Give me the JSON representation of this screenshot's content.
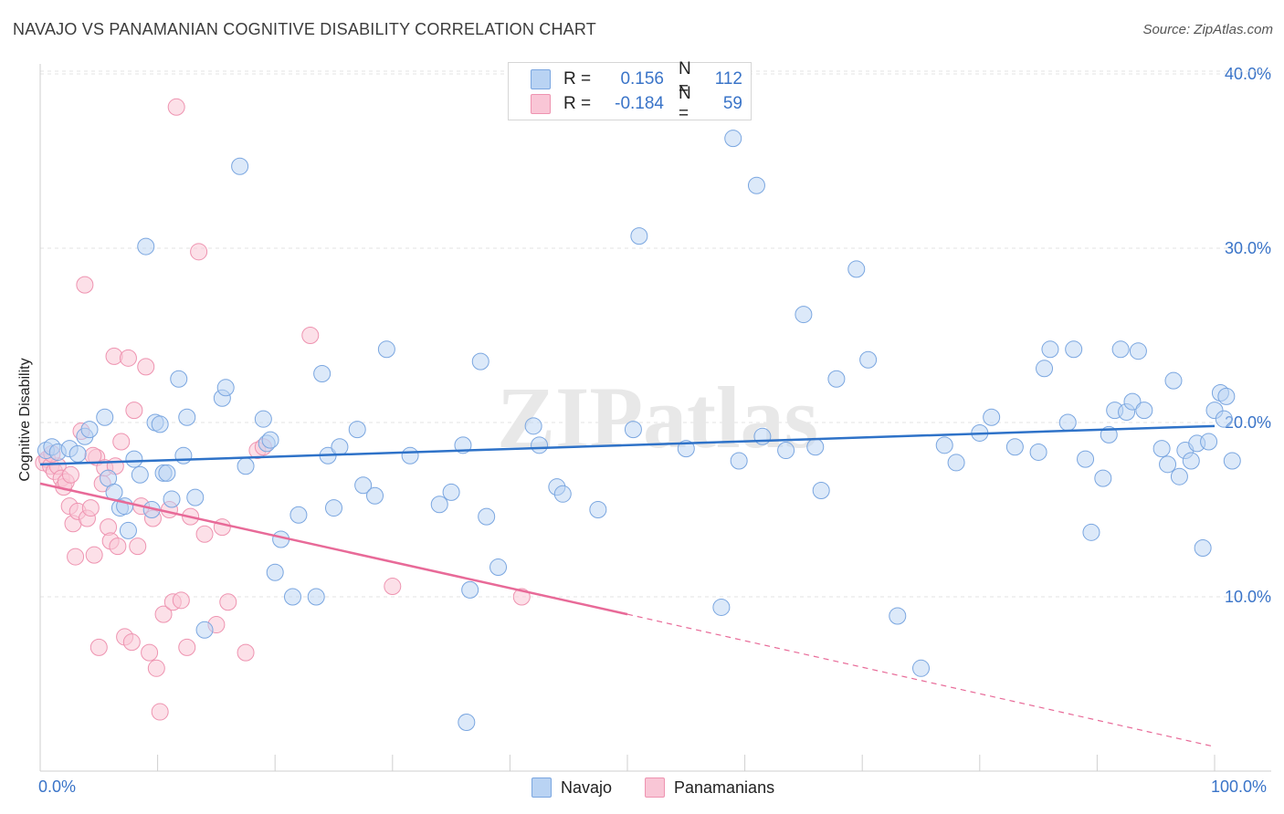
{
  "title": "NAVAJO VS PANAMANIAN COGNITIVE DISABILITY CORRELATION CHART",
  "source": "Source: ZipAtlas.com",
  "watermark": "ZIPatlas",
  "legend": {
    "row1": {
      "r_label": "R =",
      "r_value": "0.156",
      "n_label": "N =",
      "n_value": "112"
    },
    "row2": {
      "r_label": "R =",
      "r_value": "-0.184",
      "n_label": "N =",
      "n_value": "59"
    }
  },
  "bottom_legend": {
    "series1": "Navajo",
    "series2": "Panamanians"
  },
  "colors": {
    "navajo_fill": "#b9d3f3",
    "navajo_stroke": "#7aa6e0",
    "navajo_line": "#2e72c8",
    "pan_fill": "#f9c6d6",
    "pan_stroke": "#ee93b0",
    "pan_line": "#e86a98",
    "axis_text": "#3a74c8",
    "grid": "#e3e3e3"
  },
  "chart_data": {
    "type": "scatter",
    "title": "NAVAJO VS PANAMANIAN COGNITIVE DISABILITY CORRELATION CHART",
    "xlabel": "",
    "ylabel": "Cognitive Disability",
    "xlim": [
      0,
      100
    ],
    "ylim": [
      0,
      42
    ],
    "x_tick_labels": [
      "0.0%",
      "100.0%"
    ],
    "y_ticks": [
      10,
      20,
      30,
      40
    ],
    "y_tick_labels": [
      "10.0%",
      "20.0%",
      "30.0%",
      "40.0%"
    ],
    "series": [
      {
        "name": "Navajo",
        "r": 0.156,
        "n": 112,
        "trend": {
          "x": [
            0,
            100
          ],
          "y": [
            17.6,
            19.8
          ]
        },
        "points": [
          [
            0.5,
            18.4
          ],
          [
            1.0,
            18.6
          ],
          [
            1.5,
            18.3
          ],
          [
            2.5,
            18.5
          ],
          [
            3.2,
            18.2
          ],
          [
            3.8,
            19.2
          ],
          [
            4.2,
            19.6
          ],
          [
            5.5,
            20.3
          ],
          [
            5.8,
            16.8
          ],
          [
            6.3,
            16.0
          ],
          [
            6.8,
            15.1
          ],
          [
            7.2,
            15.2
          ],
          [
            7.5,
            13.8
          ],
          [
            8.0,
            17.9
          ],
          [
            8.5,
            17.0
          ],
          [
            9.0,
            30.1
          ],
          [
            9.5,
            15.0
          ],
          [
            9.8,
            20.0
          ],
          [
            10.2,
            19.9
          ],
          [
            10.5,
            17.1
          ],
          [
            10.8,
            17.1
          ],
          [
            11.2,
            15.6
          ],
          [
            11.8,
            22.5
          ],
          [
            12.2,
            18.1
          ],
          [
            12.5,
            20.3
          ],
          [
            13.2,
            15.7
          ],
          [
            14.0,
            8.1
          ],
          [
            15.5,
            21.4
          ],
          [
            15.8,
            22.0
          ],
          [
            17.0,
            34.7
          ],
          [
            17.5,
            17.5
          ],
          [
            19.0,
            20.2
          ],
          [
            19.3,
            18.8
          ],
          [
            19.6,
            19.0
          ],
          [
            20.0,
            11.4
          ],
          [
            20.5,
            13.3
          ],
          [
            21.5,
            10.0
          ],
          [
            22.0,
            14.7
          ],
          [
            23.5,
            10.0
          ],
          [
            24.0,
            22.8
          ],
          [
            24.5,
            18.1
          ],
          [
            25.0,
            15.1
          ],
          [
            25.5,
            18.6
          ],
          [
            27.0,
            19.6
          ],
          [
            27.5,
            16.4
          ],
          [
            28.5,
            15.8
          ],
          [
            29.5,
            24.2
          ],
          [
            31.5,
            18.1
          ],
          [
            34.0,
            15.3
          ],
          [
            35.0,
            16.0
          ],
          [
            36.0,
            18.7
          ],
          [
            36.3,
            2.8
          ],
          [
            36.6,
            10.4
          ],
          [
            37.5,
            23.5
          ],
          [
            38.0,
            14.6
          ],
          [
            39.0,
            11.7
          ],
          [
            42.0,
            19.8
          ],
          [
            42.5,
            18.7
          ],
          [
            44.0,
            16.3
          ],
          [
            44.5,
            15.9
          ],
          [
            47.5,
            15.0
          ],
          [
            50.5,
            19.6
          ],
          [
            51.0,
            30.7
          ],
          [
            55.0,
            18.5
          ],
          [
            58.0,
            9.4
          ],
          [
            59.0,
            36.3
          ],
          [
            59.5,
            17.8
          ],
          [
            61.0,
            33.6
          ],
          [
            61.5,
            19.2
          ],
          [
            63.5,
            18.4
          ],
          [
            65.0,
            26.2
          ],
          [
            66.0,
            18.6
          ],
          [
            66.5,
            16.1
          ],
          [
            67.8,
            22.5
          ],
          [
            69.5,
            28.8
          ],
          [
            70.5,
            23.6
          ],
          [
            73.0,
            8.9
          ],
          [
            75.0,
            5.9
          ],
          [
            77.0,
            18.7
          ],
          [
            78.0,
            17.7
          ],
          [
            80.0,
            19.4
          ],
          [
            81.0,
            20.3
          ],
          [
            83.0,
            18.6
          ],
          [
            85.0,
            18.3
          ],
          [
            85.5,
            23.1
          ],
          [
            86.0,
            24.2
          ],
          [
            87.5,
            20.0
          ],
          [
            88.0,
            24.2
          ],
          [
            89.0,
            17.9
          ],
          [
            89.5,
            13.7
          ],
          [
            90.5,
            16.8
          ],
          [
            91.0,
            19.3
          ],
          [
            91.5,
            20.7
          ],
          [
            92.0,
            24.2
          ],
          [
            92.5,
            20.6
          ],
          [
            93.0,
            21.2
          ],
          [
            93.5,
            24.1
          ],
          [
            94.0,
            20.7
          ],
          [
            95.5,
            18.5
          ],
          [
            96.0,
            17.6
          ],
          [
            96.5,
            22.4
          ],
          [
            97.0,
            16.9
          ],
          [
            97.5,
            18.4
          ],
          [
            98.0,
            17.8
          ],
          [
            98.5,
            18.8
          ],
          [
            99.0,
            12.8
          ],
          [
            99.5,
            18.9
          ],
          [
            100.0,
            20.7
          ],
          [
            100.5,
            21.7
          ],
          [
            101.0,
            21.5
          ],
          [
            101.5,
            17.8
          ],
          [
            100.8,
            20.2
          ]
        ]
      },
      {
        "name": "Panamanians",
        "r": -0.184,
        "n": 59,
        "trend": {
          "x": [
            0,
            50
          ],
          "y": [
            16.5,
            9.0
          ]
        },
        "trend_dashed": {
          "x": [
            50,
            100
          ],
          "y": [
            9.0,
            1.4
          ]
        },
        "points": [
          [
            0.3,
            17.7
          ],
          [
            0.6,
            17.9
          ],
          [
            0.9,
            17.5
          ],
          [
            1.2,
            17.2
          ],
          [
            1.5,
            17.5
          ],
          [
            1.8,
            16.8
          ],
          [
            2.0,
            16.3
          ],
          [
            2.2,
            16.6
          ],
          [
            2.5,
            15.2
          ],
          [
            2.8,
            14.2
          ],
          [
            3.0,
            12.3
          ],
          [
            3.2,
            14.9
          ],
          [
            3.5,
            19.5
          ],
          [
            3.8,
            27.9
          ],
          [
            4.0,
            14.5
          ],
          [
            4.3,
            15.1
          ],
          [
            4.6,
            12.4
          ],
          [
            4.8,
            18.0
          ],
          [
            5.0,
            7.1
          ],
          [
            5.3,
            16.5
          ],
          [
            5.5,
            17.4
          ],
          [
            5.8,
            14.0
          ],
          [
            6.0,
            13.2
          ],
          [
            6.3,
            23.8
          ],
          [
            6.6,
            12.9
          ],
          [
            6.9,
            18.9
          ],
          [
            7.2,
            7.7
          ],
          [
            7.5,
            23.7
          ],
          [
            7.8,
            7.4
          ],
          [
            8.0,
            20.7
          ],
          [
            8.3,
            12.9
          ],
          [
            8.6,
            15.2
          ],
          [
            9.0,
            23.2
          ],
          [
            9.3,
            6.8
          ],
          [
            9.6,
            14.5
          ],
          [
            9.9,
            5.9
          ],
          [
            10.2,
            3.4
          ],
          [
            10.5,
            9.0
          ],
          [
            11.0,
            15.0
          ],
          [
            11.3,
            9.7
          ],
          [
            11.6,
            38.1
          ],
          [
            12.0,
            9.8
          ],
          [
            12.5,
            7.1
          ],
          [
            12.8,
            14.6
          ],
          [
            13.5,
            29.8
          ],
          [
            14.0,
            13.6
          ],
          [
            15.0,
            8.4
          ],
          [
            15.5,
            14.0
          ],
          [
            16.0,
            9.7
          ],
          [
            17.5,
            6.8
          ],
          [
            18.5,
            18.4
          ],
          [
            19.0,
            18.6
          ],
          [
            23.0,
            25.0
          ],
          [
            30.0,
            10.6
          ],
          [
            41.0,
            10.0
          ],
          [
            4.5,
            18.1
          ],
          [
            2.6,
            17.0
          ],
          [
            6.4,
            17.5
          ],
          [
            1.0,
            18.2
          ]
        ]
      }
    ]
  }
}
